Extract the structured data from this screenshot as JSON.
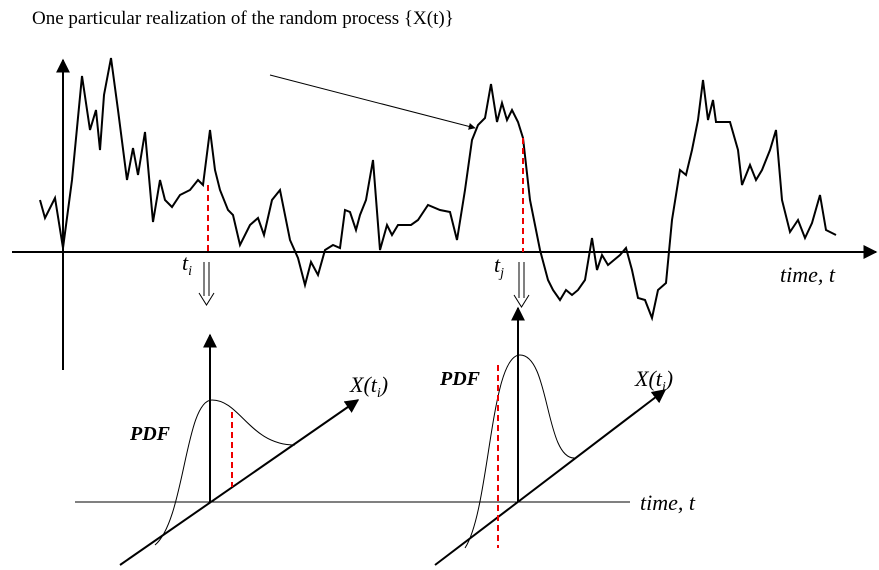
{
  "title": "One particular realization of the random process {X(t)}",
  "process": {
    "time_markers": [
      {
        "base": "t",
        "sub": "i"
      },
      {
        "base": "t",
        "sub": "j"
      }
    ],
    "axis_label": "time, t"
  },
  "pdfs": [
    {
      "label": "PDF",
      "axis": {
        "pre": "X(",
        "base": "t",
        "sub": "i",
        "post": ")"
      }
    },
    {
      "label": "PDF",
      "axis": {
        "pre": "X(",
        "base": "t",
        "sub": "j",
        "post": ")"
      }
    }
  ],
  "lower_axis_label": "time, t"
}
